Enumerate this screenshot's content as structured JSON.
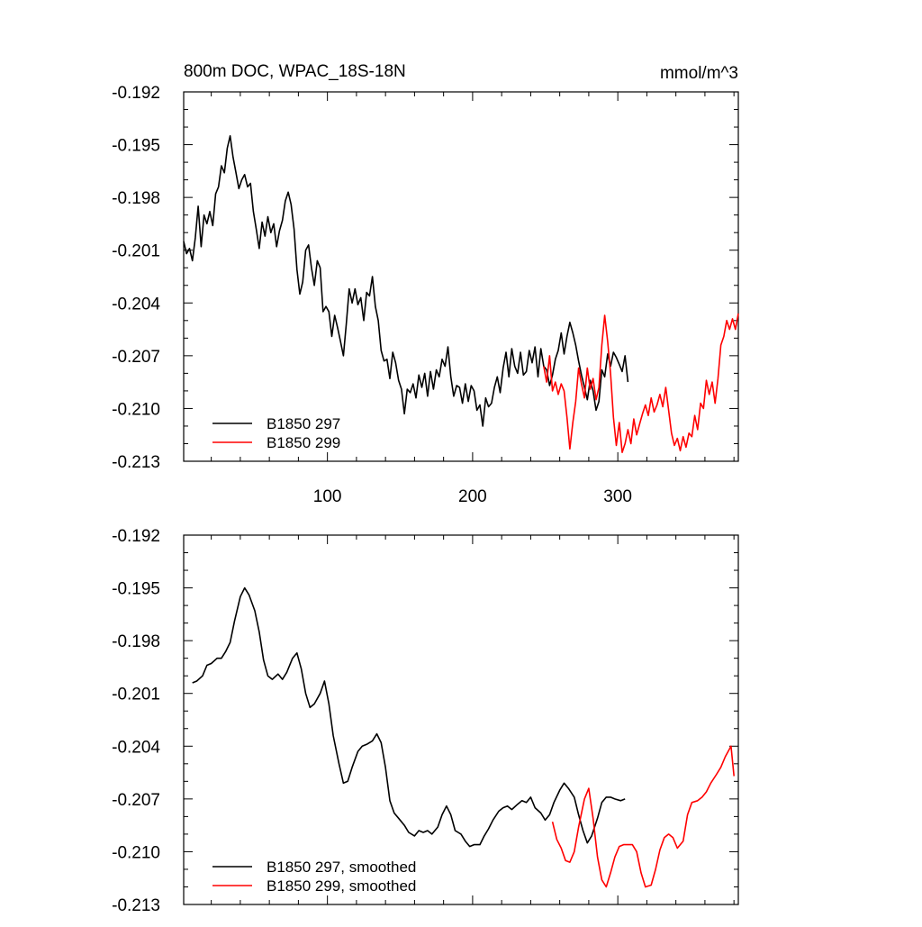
{
  "title_left": "800m DOC, WPAC_18S-18N",
  "title_right": "mmol/m^3",
  "colors": {
    "run_297": "#000000",
    "run_299": "#ff0000"
  },
  "chart_data": [
    {
      "type": "line",
      "xlim": [
        1,
        383
      ],
      "ylim": [
        -0.213,
        -0.192
      ],
      "yticks": [
        "-0.192",
        "-0.195",
        "-0.198",
        "-0.201",
        "-0.204",
        "-0.207",
        "-0.210",
        "-0.213"
      ],
      "xticks": [
        "100",
        "200",
        "300"
      ],
      "xtick_values": [
        100,
        200,
        300
      ],
      "legend_position": "bottom-left",
      "series": [
        {
          "name": "B1850 297",
          "color": "#000000",
          "x": [
            1,
            3,
            5,
            7,
            9,
            11,
            13,
            15,
            17,
            19,
            21,
            23,
            25,
            27,
            29,
            31,
            33,
            35,
            37,
            39,
            41,
            43,
            45,
            47,
            49,
            51,
            53,
            55,
            57,
            59,
            61,
            63,
            65,
            67,
            69,
            71,
            73,
            75,
            77,
            79,
            81,
            83,
            85,
            87,
            89,
            91,
            93,
            95,
            97,
            99,
            101,
            103,
            105,
            107,
            109,
            111,
            113,
            115,
            117,
            119,
            121,
            123,
            125,
            127,
            129,
            131,
            133,
            135,
            137,
            139,
            141,
            143,
            145,
            147,
            149,
            151,
            153,
            155,
            157,
            159,
            161,
            163,
            165,
            167,
            169,
            171,
            173,
            175,
            177,
            179,
            181,
            183,
            185,
            187,
            189,
            191,
            193,
            195,
            197,
            199,
            201,
            203,
            205,
            207,
            209,
            211,
            213,
            215,
            217,
            219,
            221,
            223,
            225,
            227,
            229,
            231,
            233,
            235,
            237,
            239,
            241,
            243,
            245,
            247,
            249,
            251,
            253,
            255,
            257,
            259,
            261,
            263,
            265,
            267,
            269,
            271,
            273,
            275,
            277,
            279,
            281,
            283,
            285,
            287,
            289,
            291,
            293,
            295,
            297,
            299,
            301,
            303,
            305,
            307
          ],
          "y": [
            -0.2005,
            -0.2012,
            -0.2009,
            -0.2016,
            -0.2003,
            -0.1985,
            -0.2008,
            -0.199,
            -0.1995,
            -0.1988,
            -0.1996,
            -0.1978,
            -0.1974,
            -0.1962,
            -0.1966,
            -0.1952,
            -0.1945,
            -0.1957,
            -0.1966,
            -0.1975,
            -0.197,
            -0.1967,
            -0.1974,
            -0.1972,
            -0.1988,
            -0.1998,
            -0.2009,
            -0.1994,
            -0.2002,
            -0.1991,
            -0.2,
            -0.1995,
            -0.2008,
            -0.1999,
            -0.1993,
            -0.1982,
            -0.1977,
            -0.1984,
            -0.1998,
            -0.2021,
            -0.2035,
            -0.2028,
            -0.201,
            -0.2007,
            -0.202,
            -0.203,
            -0.2016,
            -0.202,
            -0.2045,
            -0.2042,
            -0.2045,
            -0.2059,
            -0.2047,
            -0.2054,
            -0.2062,
            -0.207,
            -0.2052,
            -0.2032,
            -0.204,
            -0.2032,
            -0.2041,
            -0.2037,
            -0.205,
            -0.2034,
            -0.2036,
            -0.2025,
            -0.2042,
            -0.205,
            -0.2067,
            -0.2073,
            -0.2072,
            -0.2083,
            -0.2068,
            -0.2074,
            -0.2084,
            -0.2089,
            -0.2103,
            -0.2089,
            -0.2091,
            -0.2086,
            -0.2094,
            -0.2081,
            -0.2088,
            -0.208,
            -0.2093,
            -0.2079,
            -0.2089,
            -0.2078,
            -0.2082,
            -0.2072,
            -0.2076,
            -0.2065,
            -0.2082,
            -0.2093,
            -0.2087,
            -0.2088,
            -0.2097,
            -0.2086,
            -0.2096,
            -0.2087,
            -0.209,
            -0.2101,
            -0.2098,
            -0.211,
            -0.2094,
            -0.2099,
            -0.2097,
            -0.2088,
            -0.2082,
            -0.2091,
            -0.2077,
            -0.2068,
            -0.2082,
            -0.2066,
            -0.2076,
            -0.208,
            -0.2068,
            -0.2081,
            -0.2079,
            -0.2067,
            -0.2074,
            -0.2065,
            -0.2082,
            -0.2066,
            -0.2076,
            -0.2078,
            -0.2087,
            -0.2081,
            -0.2072,
            -0.2067,
            -0.2057,
            -0.2069,
            -0.2059,
            -0.2051,
            -0.2057,
            -0.2064,
            -0.2073,
            -0.2081,
            -0.2088,
            -0.2095,
            -0.2084,
            -0.209,
            -0.2101,
            -0.2096,
            -0.2078,
            -0.2082,
            -0.2069,
            -0.2076,
            -0.2068,
            -0.2071,
            -0.2075,
            -0.2079,
            -0.207,
            -0.2085
          ]
        },
        {
          "name": "B1850 299",
          "color": "#ff0000",
          "x": [
            249,
            251,
            253,
            255,
            257,
            259,
            261,
            263,
            265,
            267,
            269,
            271,
            273,
            275,
            277,
            279,
            281,
            283,
            285,
            287,
            289,
            291,
            293,
            295,
            297,
            299,
            301,
            303,
            305,
            307,
            309,
            311,
            313,
            315,
            317,
            319,
            321,
            323,
            325,
            327,
            329,
            331,
            333,
            335,
            337,
            339,
            341,
            343,
            345,
            347,
            349,
            351,
            353,
            355,
            357,
            359,
            361,
            363,
            365,
            367,
            369,
            371,
            373,
            375,
            377,
            379,
            381,
            383
          ],
          "y": [
            -0.2076,
            -0.2085,
            -0.207,
            -0.209,
            -0.2085,
            -0.2092,
            -0.2086,
            -0.209,
            -0.2105,
            -0.2123,
            -0.2108,
            -0.2096,
            -0.2077,
            -0.2086,
            -0.2094,
            -0.2077,
            -0.2089,
            -0.2083,
            -0.2095,
            -0.2088,
            -0.2064,
            -0.2047,
            -0.2062,
            -0.208,
            -0.2105,
            -0.2121,
            -0.2108,
            -0.2125,
            -0.212,
            -0.2112,
            -0.212,
            -0.2106,
            -0.2115,
            -0.2109,
            -0.2103,
            -0.2098,
            -0.2104,
            -0.2094,
            -0.2102,
            -0.2098,
            -0.2092,
            -0.2099,
            -0.2088,
            -0.2101,
            -0.2114,
            -0.2121,
            -0.2117,
            -0.2124,
            -0.2116,
            -0.2122,
            -0.2114,
            -0.2116,
            -0.2104,
            -0.2112,
            -0.2097,
            -0.21,
            -0.2084,
            -0.2092,
            -0.2085,
            -0.2097,
            -0.2083,
            -0.2064,
            -0.2059,
            -0.205,
            -0.2055,
            -0.2049,
            -0.2055,
            -0.2046
          ]
        }
      ]
    },
    {
      "type": "line",
      "xlim": [
        1,
        383
      ],
      "ylim": [
        -0.213,
        -0.192
      ],
      "yticks": [
        "-0.192",
        "-0.195",
        "-0.198",
        "-0.201",
        "-0.204",
        "-0.207",
        "-0.210",
        "-0.213"
      ],
      "xtick_values": [
        100,
        200,
        300
      ],
      "legend_position": "bottom-left",
      "series": [
        {
          "name": "B1850 297, smoothed",
          "color": "#000000",
          "x": [
            7,
            10,
            14,
            17,
            20,
            24,
            27,
            30,
            33,
            36,
            40,
            43,
            46,
            50,
            53,
            56,
            59,
            62,
            66,
            69,
            72,
            76,
            79,
            82,
            85,
            88,
            91,
            95,
            98,
            101,
            104,
            108,
            111,
            114,
            117,
            121,
            124,
            127,
            131,
            134,
            137,
            140,
            143,
            146,
            149,
            153,
            156,
            160,
            163,
            166,
            169,
            172,
            176,
            179,
            182,
            185,
            188,
            192,
            195,
            198,
            201,
            205,
            208,
            211,
            214,
            218,
            221,
            224,
            227,
            231,
            234,
            237,
            240,
            243,
            247,
            250,
            253,
            256,
            260,
            263,
            266,
            270,
            273,
            276,
            279,
            282,
            286,
            289,
            292,
            295,
            298,
            302,
            305
          ],
          "y": [
            -0.2004,
            -0.2003,
            -0.2,
            -0.1994,
            -0.1993,
            -0.199,
            -0.199,
            -0.1986,
            -0.1981,
            -0.1969,
            -0.1955,
            -0.195,
            -0.1954,
            -0.1963,
            -0.1975,
            -0.1991,
            -0.2,
            -0.2002,
            -0.1999,
            -0.2002,
            -0.1998,
            -0.199,
            -0.1987,
            -0.1996,
            -0.201,
            -0.2018,
            -0.2016,
            -0.201,
            -0.2003,
            -0.2016,
            -0.2034,
            -0.205,
            -0.2061,
            -0.206,
            -0.2052,
            -0.2043,
            -0.204,
            -0.2039,
            -0.2037,
            -0.2033,
            -0.2038,
            -0.2052,
            -0.2071,
            -0.2078,
            -0.2081,
            -0.2085,
            -0.2089,
            -0.2091,
            -0.2088,
            -0.2089,
            -0.2088,
            -0.209,
            -0.2086,
            -0.2079,
            -0.2074,
            -0.2079,
            -0.2088,
            -0.209,
            -0.2094,
            -0.2097,
            -0.2096,
            -0.2096,
            -0.2091,
            -0.2087,
            -0.2082,
            -0.2077,
            -0.2075,
            -0.2074,
            -0.2076,
            -0.2073,
            -0.2071,
            -0.2072,
            -0.2069,
            -0.2075,
            -0.2078,
            -0.2082,
            -0.2079,
            -0.2072,
            -0.2065,
            -0.2061,
            -0.2064,
            -0.2069,
            -0.2079,
            -0.2088,
            -0.2095,
            -0.2091,
            -0.2081,
            -0.2072,
            -0.2069,
            -0.2069,
            -0.207,
            -0.2071,
            -0.207
          ]
        },
        {
          "name": "B1850 299, smoothed",
          "color": "#ff0000",
          "x": [
            255,
            258,
            261,
            264,
            267,
            270,
            273,
            277,
            280,
            283,
            286,
            289,
            292,
            295,
            298,
            301,
            304,
            307,
            310,
            313,
            316,
            319,
            323,
            326,
            329,
            332,
            335,
            338,
            341,
            345,
            348,
            351,
            355,
            358,
            361,
            364,
            368,
            371,
            374,
            378,
            380
          ],
          "y": [
            -0.2083,
            -0.2093,
            -0.2098,
            -0.2105,
            -0.2106,
            -0.21,
            -0.2086,
            -0.207,
            -0.2064,
            -0.2081,
            -0.2103,
            -0.2116,
            -0.212,
            -0.2112,
            -0.2103,
            -0.2097,
            -0.2096,
            -0.2096,
            -0.2096,
            -0.21,
            -0.2112,
            -0.212,
            -0.2119,
            -0.211,
            -0.2099,
            -0.2092,
            -0.209,
            -0.2092,
            -0.2098,
            -0.2094,
            -0.2079,
            -0.2072,
            -0.2071,
            -0.2069,
            -0.2066,
            -0.2061,
            -0.2056,
            -0.2052,
            -0.2046,
            -0.204,
            -0.2057
          ]
        }
      ]
    }
  ]
}
